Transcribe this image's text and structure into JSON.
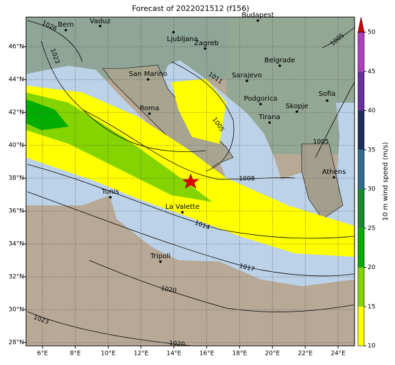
{
  "title": "Forecast of 2022021512 (f156)",
  "map": {
    "lon_range": [
      5,
      25
    ],
    "lat_range": [
      27.8,
      47.8
    ],
    "grid": true,
    "lon_ticks": [
      {
        "value": 6,
        "label": "6°E"
      },
      {
        "value": 8,
        "label": "8°E"
      },
      {
        "value": 10,
        "label": "10°E"
      },
      {
        "value": 12,
        "label": "12°E"
      },
      {
        "value": 14,
        "label": "14°E"
      },
      {
        "value": 16,
        "label": "16°E"
      },
      {
        "value": 18,
        "label": "18°E"
      },
      {
        "value": 20,
        "label": "20°E"
      },
      {
        "value": 22,
        "label": "22°E"
      },
      {
        "value": 24,
        "label": "24°E"
      }
    ],
    "lat_ticks": [
      {
        "value": 28,
        "label": "28°N"
      },
      {
        "value": 30,
        "label": "30°N"
      },
      {
        "value": 32,
        "label": "32°N"
      },
      {
        "value": 34,
        "label": "34°N"
      },
      {
        "value": 36,
        "label": "36°N"
      },
      {
        "value": 38,
        "label": "38°N"
      },
      {
        "value": 40,
        "label": "40°N"
      },
      {
        "value": 42,
        "label": "42°N"
      },
      {
        "value": 44,
        "label": "44°N"
      },
      {
        "value": 46,
        "label": "46°N"
      }
    ]
  },
  "cities": [
    "Bern",
    "Vaduz",
    "Budapest",
    "Ljubljana",
    "Zagreb",
    "San Marino",
    "Belgrade",
    "Sarajevo",
    "Sofia",
    "Roma",
    "Podgorica",
    "Skopje",
    "Tirana",
    "Athens",
    "Tunis",
    "La Valette",
    "Tripoli"
  ],
  "isobar_labels": [
    "1026",
    "1023",
    "1011",
    "1005",
    "1005",
    "1005",
    "1008",
    "1014",
    "1017",
    "1020",
    "1023",
    "1020"
  ],
  "colorbar": {
    "label": "10 m wind speed (m/s)",
    "ticks": [
      10,
      15,
      20,
      25,
      30,
      35,
      40,
      45,
      50
    ],
    "colors": [
      "#ffff00",
      "#84d400",
      "#00ad00",
      "#158a30",
      "#2f6c8f",
      "#1c2f5e",
      "#6a2fa0",
      "#b040c0"
    ],
    "extend_color": "#d80000"
  }
}
